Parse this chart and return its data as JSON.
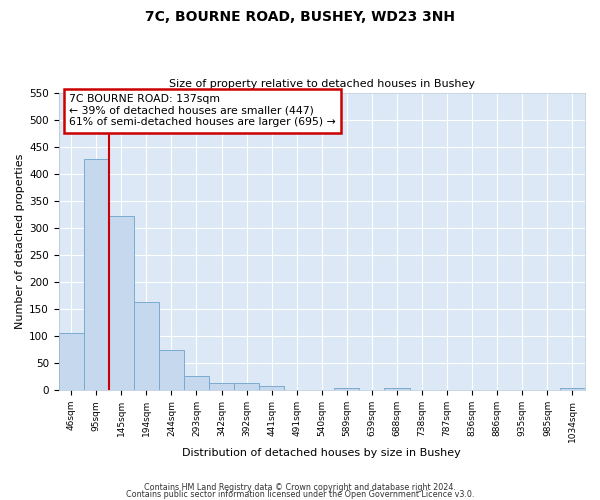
{
  "title": "7C, BOURNE ROAD, BUSHEY, WD23 3NH",
  "subtitle": "Size of property relative to detached houses in Bushey",
  "xlabel": "Distribution of detached houses by size in Bushey",
  "ylabel": "Number of detached properties",
  "bin_labels": [
    "46sqm",
    "95sqm",
    "145sqm",
    "194sqm",
    "244sqm",
    "293sqm",
    "342sqm",
    "392sqm",
    "441sqm",
    "491sqm",
    "540sqm",
    "589sqm",
    "639sqm",
    "688sqm",
    "738sqm",
    "787sqm",
    "836sqm",
    "886sqm",
    "935sqm",
    "985sqm",
    "1034sqm"
  ],
  "bar_heights": [
    105,
    428,
    322,
    163,
    75,
    27,
    13,
    13,
    8,
    0,
    0,
    5,
    0,
    5,
    0,
    0,
    0,
    0,
    0,
    0,
    5
  ],
  "bar_color": "#c5d8ee",
  "bar_edge_color": "#7aabcf",
  "vline_x_index": 2,
  "vline_color": "#cc0000",
  "ylim": [
    0,
    550
  ],
  "yticks": [
    0,
    50,
    100,
    150,
    200,
    250,
    300,
    350,
    400,
    450,
    500,
    550
  ],
  "annotation_text": "7C BOURNE ROAD: 137sqm\n← 39% of detached houses are smaller (447)\n61% of semi-detached houses are larger (695) →",
  "annotation_box_color": "#ffffff",
  "annotation_box_edge_color": "#cc0000",
  "footer_line1": "Contains HM Land Registry data © Crown copyright and database right 2024.",
  "footer_line2": "Contains public sector information licensed under the Open Government Licence v3.0.",
  "axes_bg_color": "#dce8f5",
  "fig_bg_color": "#ffffff",
  "grid_color": "#ffffff"
}
